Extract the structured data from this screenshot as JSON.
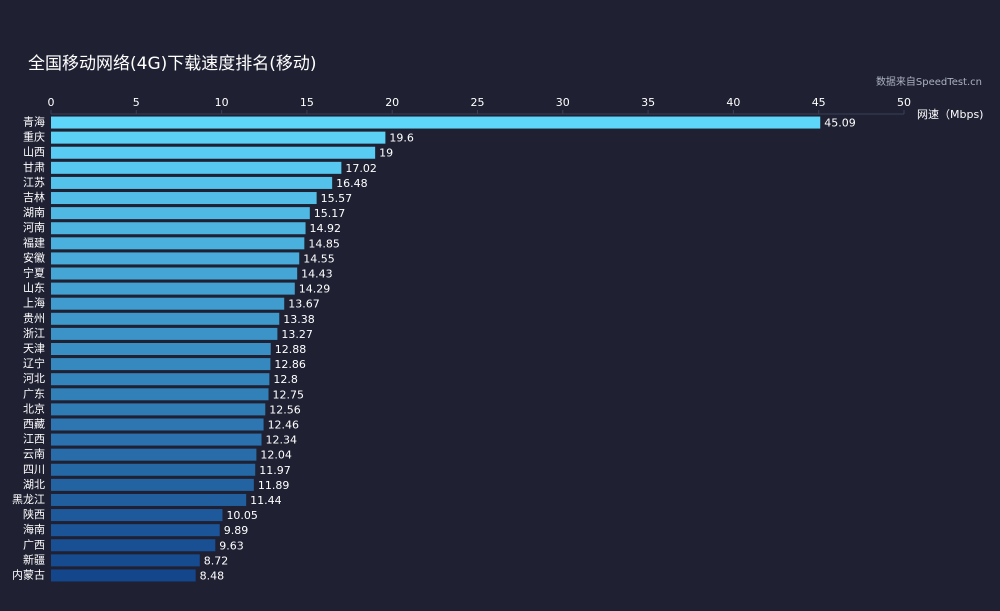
{
  "chart_data": {
    "type": "hbar",
    "title": "全国移动网络(4G)下载速度排名(移动)",
    "subtitle": "数据来自SpeedTest.cn",
    "x_label": "网速（Mbps)",
    "categories": [
      "青海",
      "重庆",
      "山西",
      "甘肃",
      "江苏",
      "吉林",
      "湖南",
      "河南",
      "福建",
      "安徽",
      "宁夏",
      "山东",
      "上海",
      "贵州",
      "浙江",
      "天津",
      "辽宁",
      "河北",
      "广东",
      "北京",
      "西藏",
      "江西",
      "云南",
      "四川",
      "湖北",
      "黑龙江",
      "陕西",
      "海南",
      "广西",
      "新疆",
      "内蒙古"
    ],
    "values": [
      45.09,
      19.6,
      19,
      17.02,
      16.48,
      15.57,
      15.17,
      14.92,
      14.85,
      14.55,
      14.43,
      14.29,
      13.67,
      13.38,
      13.27,
      12.88,
      12.86,
      12.8,
      12.75,
      12.56,
      12.46,
      12.34,
      12.04,
      11.97,
      11.89,
      11.44,
      10.05,
      9.89,
      9.63,
      8.72,
      8.48
    ],
    "colors": [
      "#5ed6fa",
      "#5cd1f6",
      "#59ccf3",
      "#57c8ef",
      "#54c3eb",
      "#52bee8",
      "#4fb9e4",
      "#4db4e0",
      "#4ab0dd",
      "#48abd9",
      "#45a6d5",
      "#43a1d2",
      "#409cce",
      "#3e98ca",
      "#3b93c7",
      "#398ec3",
      "#3689bf",
      "#3484bc",
      "#3280b8",
      "#2f7bb4",
      "#2d76b1",
      "#2a71ad",
      "#286ca9",
      "#2568a6",
      "#2363a2",
      "#205e9e",
      "#1e599b",
      "#1b5497",
      "#195093",
      "#164b90",
      "#14468c"
    ],
    "xlim": [
      0,
      50
    ],
    "xticks": [
      0,
      5,
      10,
      15,
      20,
      25,
      30,
      35,
      40,
      45,
      50
    ]
  }
}
